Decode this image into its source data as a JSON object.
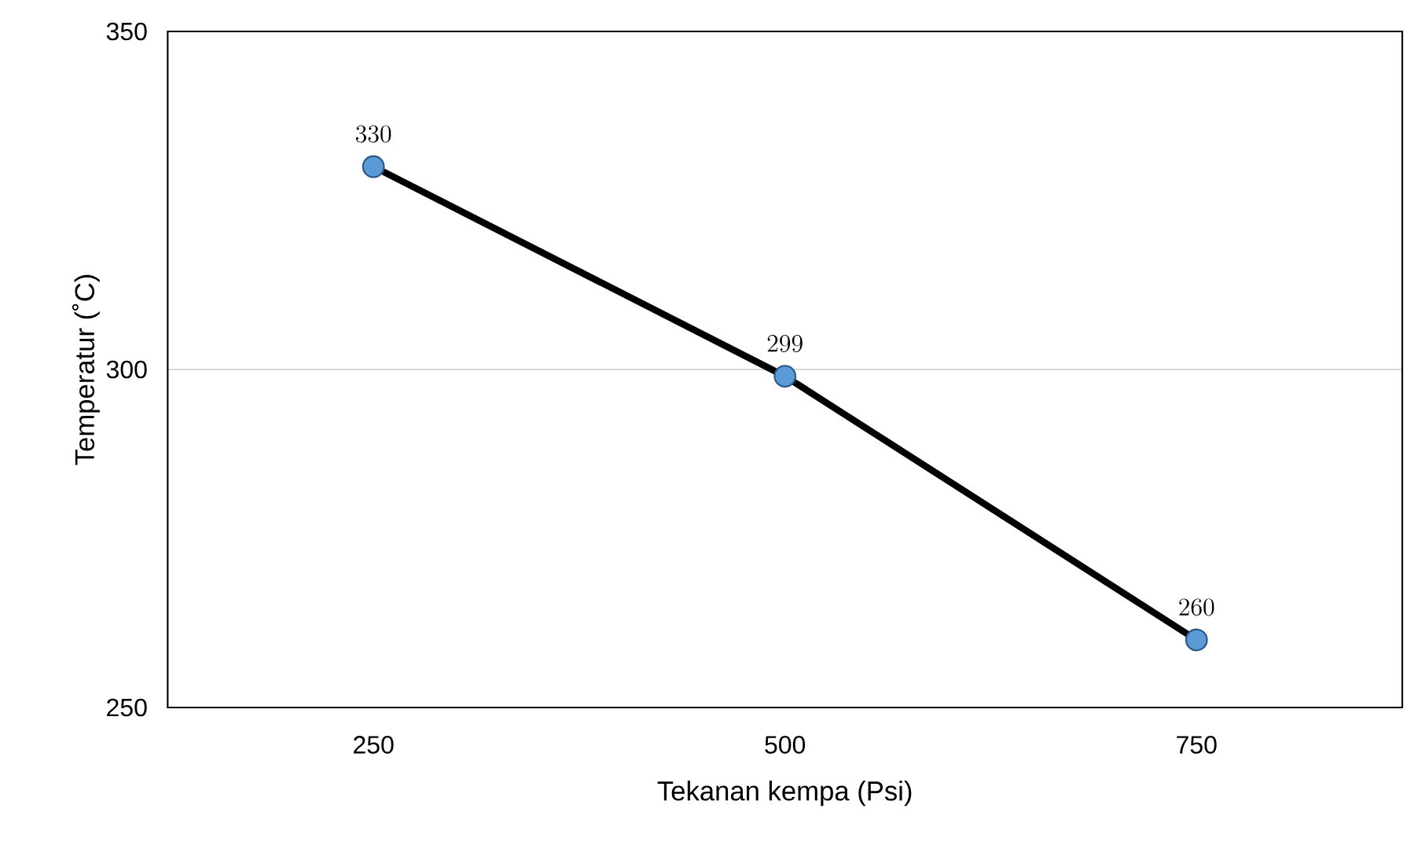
{
  "chart_data": {
    "type": "line",
    "xlabel": "Tekanan kempa (Psi)",
    "ylabel": "Temperatur (˚C)",
    "categories": [
      "250",
      "500",
      "750"
    ],
    "series": [
      {
        "color": "#000000",
        "values": [
          330,
          299,
          260
        ]
      }
    ],
    "ylim": [
      250,
      350
    ],
    "yticks": [
      250,
      300,
      350
    ],
    "grid": "y",
    "marker": "circle",
    "line_style": "solid",
    "data_labels": true
  }
}
